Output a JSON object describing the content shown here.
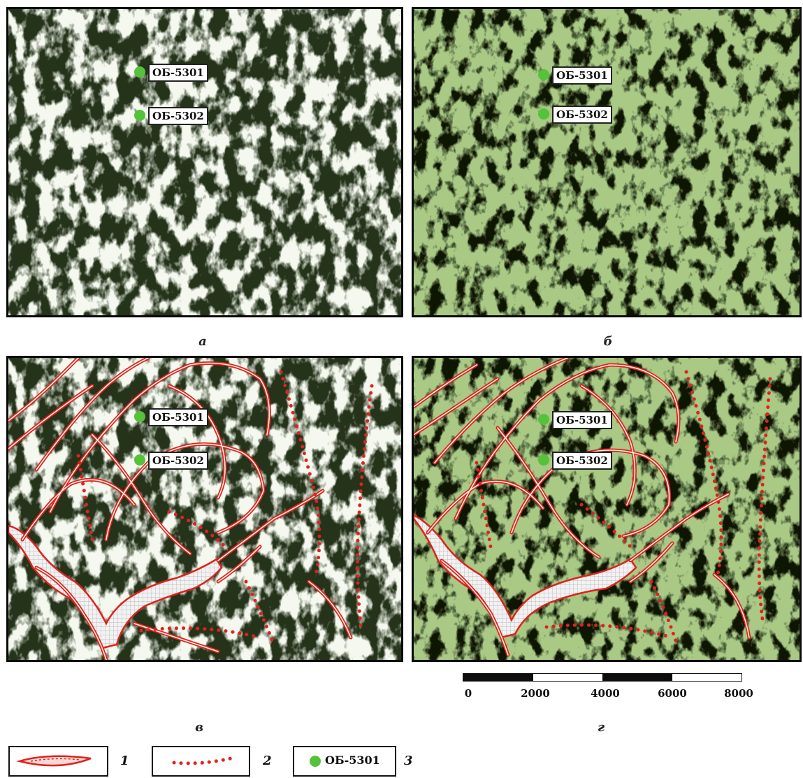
{
  "panels": [
    {
      "letter": "а",
      "theme": "dark",
      "interpreted": false
    },
    {
      "letter": "б",
      "theme": "green",
      "interpreted": false
    },
    {
      "letter": "в",
      "theme": "dark",
      "interpreted": true
    },
    {
      "letter": "г",
      "theme": "green",
      "interpreted": true
    }
  ],
  "wells": [
    {
      "label": "ОБ-5301"
    },
    {
      "label": "ОБ-5302"
    }
  ],
  "scale_bar": {
    "ticks": [
      "0",
      "2000",
      "4000",
      "6000",
      "8000"
    ],
    "segment_fills": [
      "#0d0d0d",
      "#ffffff",
      "#0d0d0d",
      "#ffffff"
    ]
  },
  "legend": [
    {
      "number": "1",
      "symbol": "lineament-double-line"
    },
    {
      "number": "2",
      "symbol": "dotted-lineament"
    },
    {
      "number": "3",
      "symbol": "well-marker",
      "label": "ОБ-5301"
    }
  ],
  "colors": {
    "lineament": "#e0221b",
    "well_marker": "#55c23a",
    "relief_dark": "#1d2a12",
    "relief_green": "#9fc27a"
  }
}
